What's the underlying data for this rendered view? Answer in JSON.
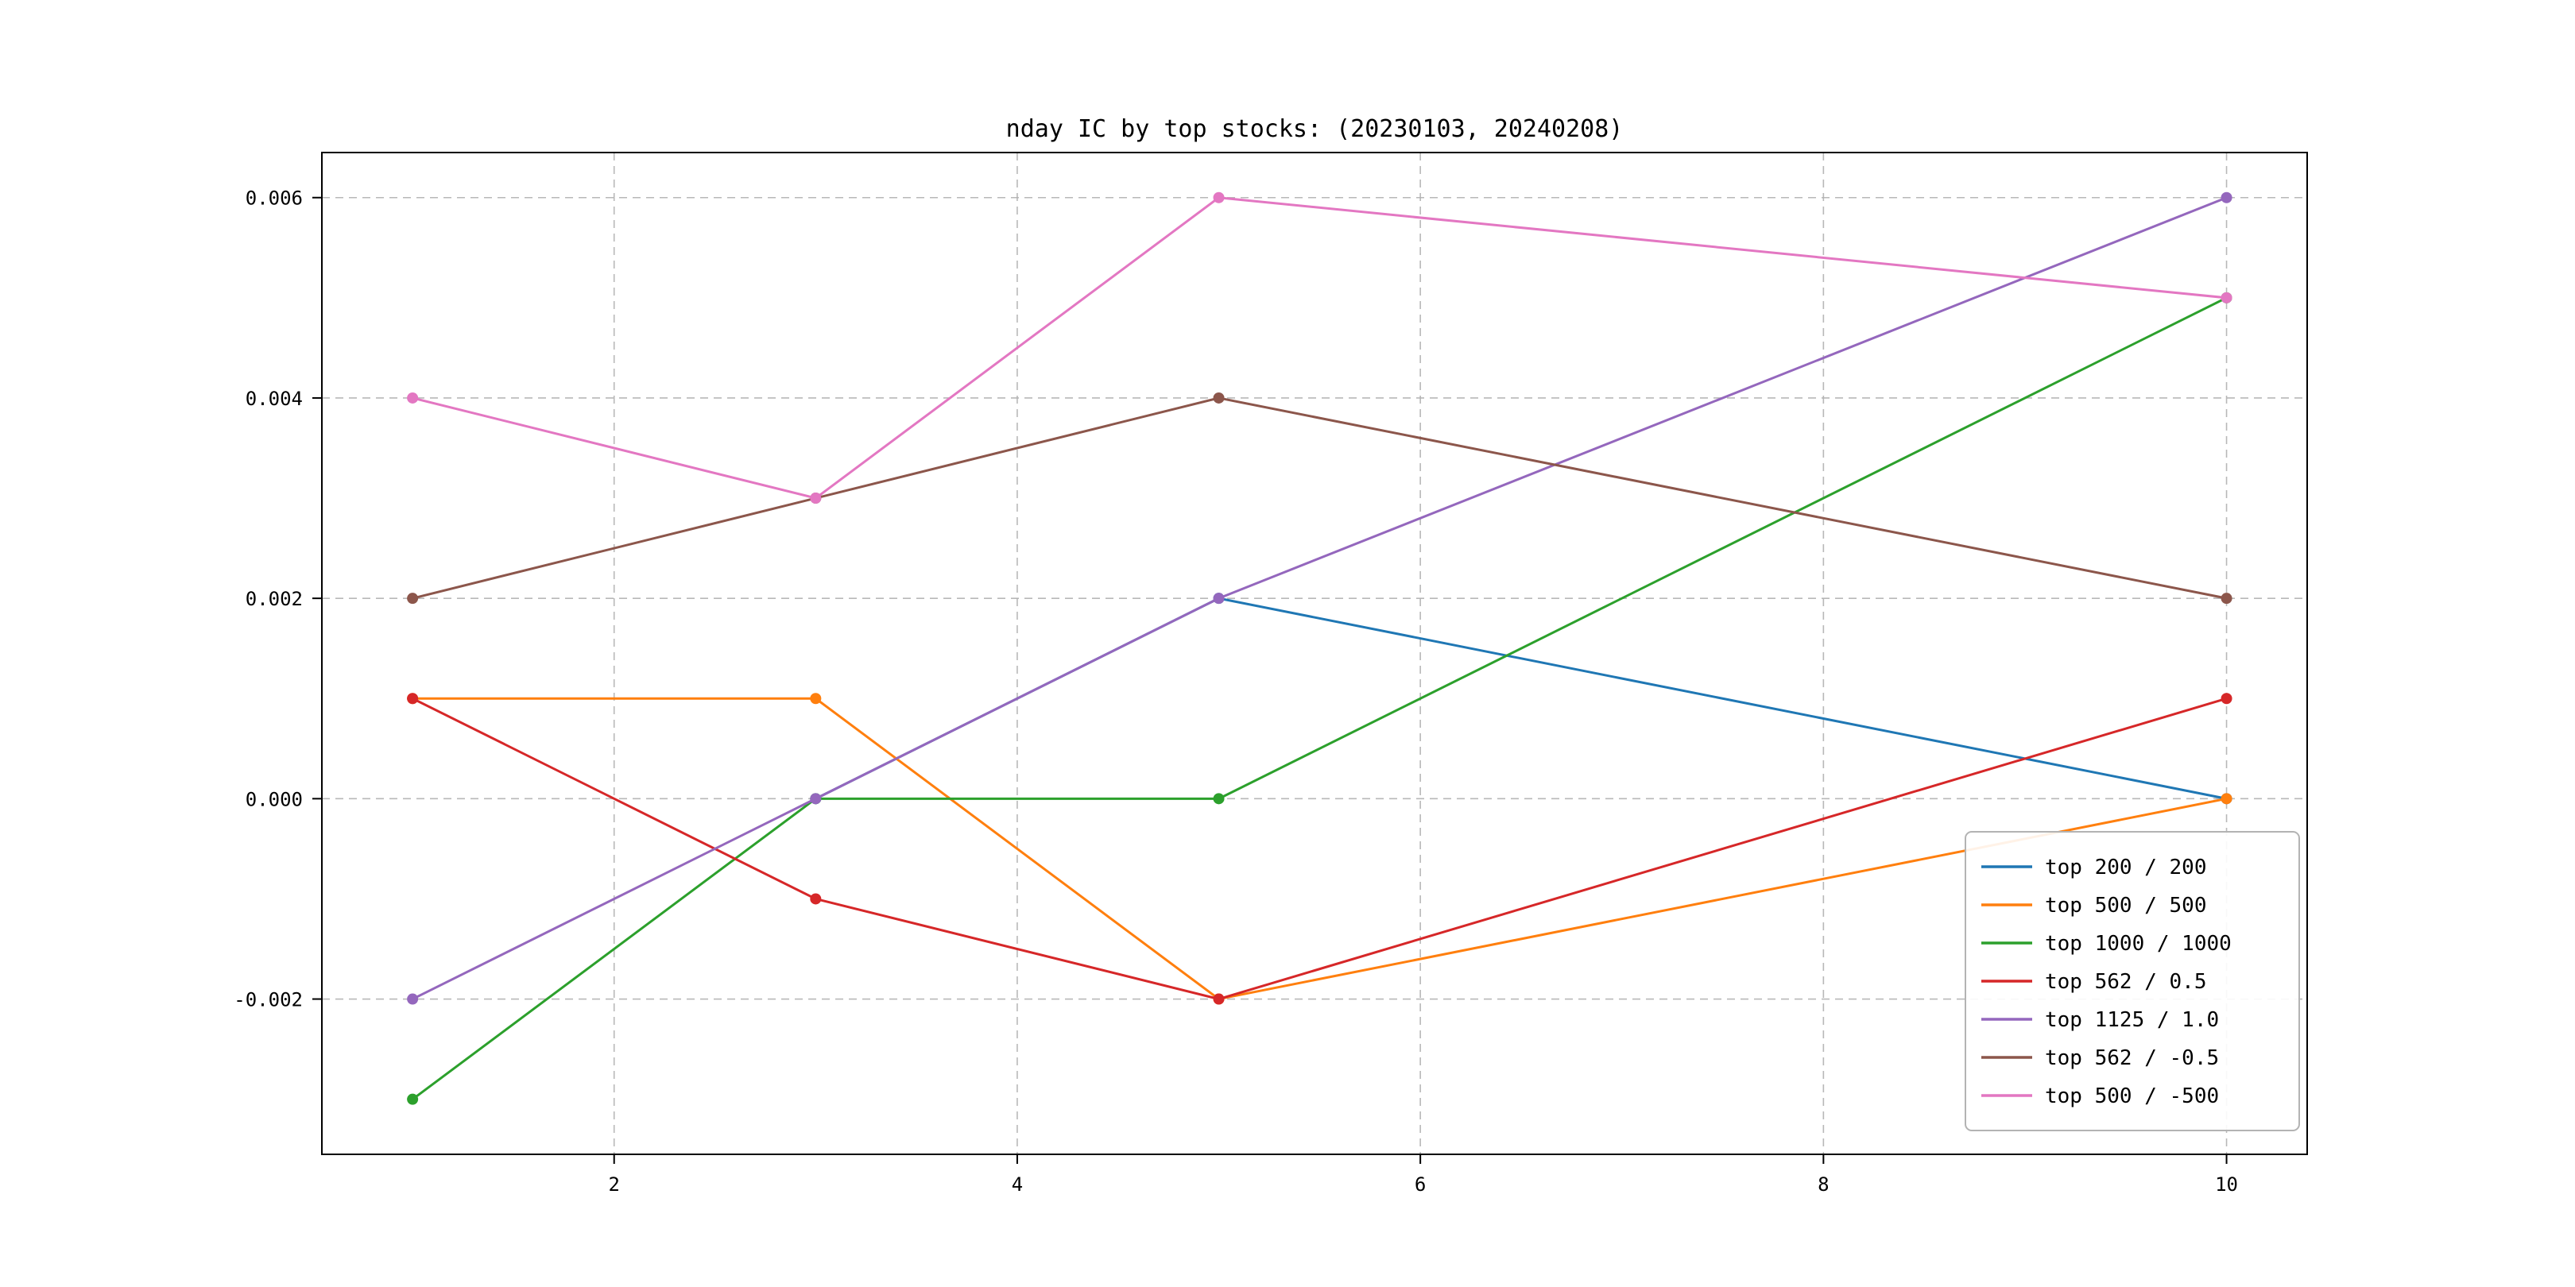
{
  "page": {
    "background": "#ffffff"
  },
  "chart_data": {
    "type": "line",
    "title": "nday IC by top stocks: (20230103, 20240208)",
    "xlabel": "",
    "ylabel": "",
    "xlim": [
      0.55,
      10.4
    ],
    "ylim": [
      -0.00355,
      0.00645
    ],
    "x_ticks": [
      2,
      4,
      6,
      8,
      10
    ],
    "y_ticks": [
      -0.002,
      0.0,
      0.002,
      0.004,
      0.006
    ],
    "grid": true,
    "grid_style": "dashed",
    "legend_position": "lower right",
    "style": {
      "grid_color": "#b0b0b0",
      "spine_color": "#000000",
      "legend_border_color": "#b3b3b3",
      "legend_background": "#ffffff",
      "marker": "circle"
    },
    "series": [
      {
        "name": "top 200 / 200",
        "color": "#1f77b4",
        "x": [
          3,
          5,
          10
        ],
        "y": [
          0.0,
          0.002,
          0.0
        ]
      },
      {
        "name": "top 500 / 500",
        "color": "#ff7f0e",
        "x": [
          1,
          3,
          5,
          10
        ],
        "y": [
          0.001,
          0.001,
          -0.002,
          0.0
        ]
      },
      {
        "name": "top 1000 / 1000",
        "color": "#2ca02c",
        "x": [
          1,
          3,
          5,
          10
        ],
        "y": [
          -0.003,
          0.0,
          0.0,
          0.005
        ]
      },
      {
        "name": "top 562 / 0.5",
        "color": "#d62728",
        "x": [
          1,
          3,
          5,
          10
        ],
        "y": [
          0.001,
          -0.001,
          -0.002,
          0.001
        ]
      },
      {
        "name": "top 1125 / 1.0",
        "color": "#9467bd",
        "x": [
          1,
          3,
          5,
          10
        ],
        "y": [
          -0.002,
          0.0,
          0.002,
          0.006
        ]
      },
      {
        "name": "top 562 / -0.5",
        "color": "#8c564b",
        "x": [
          1,
          3,
          5,
          10
        ],
        "y": [
          0.002,
          0.003,
          0.004,
          0.002
        ]
      },
      {
        "name": "top 500 / -500",
        "color": "#e377c2",
        "x": [
          1,
          3,
          5,
          10
        ],
        "y": [
          0.004,
          0.003,
          0.006,
          0.005
        ]
      }
    ]
  }
}
